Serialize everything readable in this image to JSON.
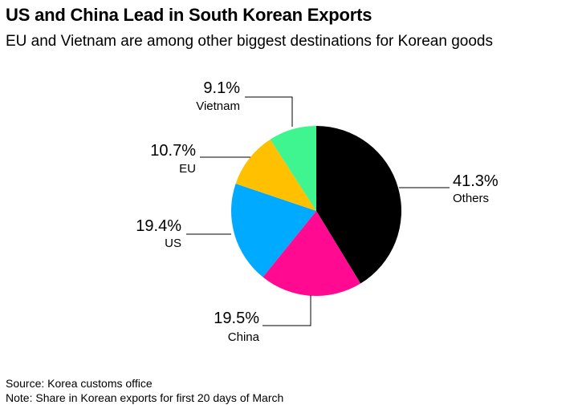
{
  "header": {
    "title": "US and China Lead in South Korean Exports",
    "subtitle": "EU and Vietnam are among other biggest destinations for Korean goods"
  },
  "chart_data": {
    "type": "pie",
    "title": "US and China Lead in South Korean Exports",
    "subtitle": "EU and Vietnam are among other biggest destinations for Korean goods",
    "start_angle_deg": 0,
    "direction": "clockwise",
    "slices": [
      {
        "label": "Others",
        "value": 41.3,
        "value_label": "41.3%",
        "color": "#000000"
      },
      {
        "label": "China",
        "value": 19.5,
        "value_label": "19.5%",
        "color": "#ff0a91"
      },
      {
        "label": "US",
        "value": 19.4,
        "value_label": "19.4%",
        "color": "#00aaff"
      },
      {
        "label": "EU",
        "value": 10.7,
        "value_label": "10.7%",
        "color": "#ffc000"
      },
      {
        "label": "Vietnam",
        "value": 9.1,
        "value_label": "9.1%",
        "color": "#3ef58f"
      }
    ]
  },
  "footer": {
    "source": "Source: Korea customs office",
    "note": "Note: Share in Korean exports for first 20 days of March"
  }
}
